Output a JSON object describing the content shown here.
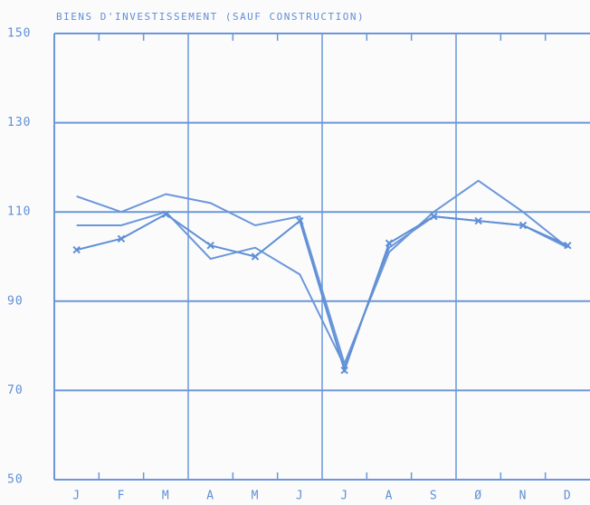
{
  "chart_data": {
    "type": "line",
    "title": "BIENS D'INVESTISSEMENT (SAUF CONSTRUCTION)",
    "categories": [
      "J",
      "F",
      "M",
      "A",
      "M",
      "J",
      "J",
      "A",
      "S",
      "Ø",
      "N",
      "D"
    ],
    "series": [
      {
        "color": "#6b97da",
        "marker": "none",
        "values": [
          113.5,
          110,
          114,
          112,
          107,
          109,
          76,
          101,
          110,
          117,
          110,
          102
        ]
      },
      {
        "color": "#6b97da",
        "marker": "none",
        "values": [
          107,
          107,
          110,
          99.5,
          102,
          96,
          75.5,
          102,
          109,
          108,
          107,
          102
        ]
      },
      {
        "color": "#5f8fd6",
        "marker": "x",
        "values": [
          101.5,
          104,
          109.5,
          102.5,
          100,
          108,
          74.5,
          103,
          109,
          108,
          107,
          102.5
        ]
      }
    ],
    "ylim": [
      50,
      150
    ],
    "yticks": [
      50,
      70,
      90,
      110,
      130,
      150
    ],
    "grid": true
  }
}
